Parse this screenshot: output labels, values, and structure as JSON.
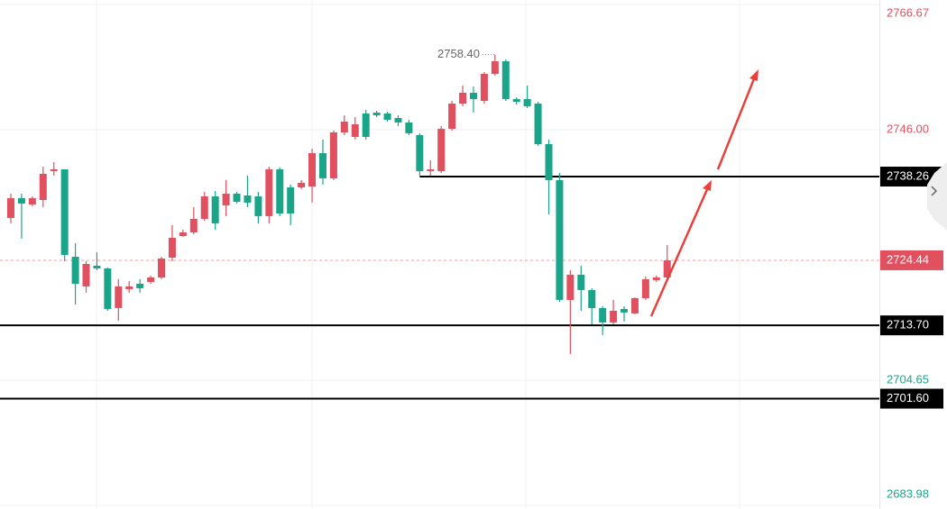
{
  "chart_data": {
    "type": "candlestick",
    "ylim": [
      2683.98,
      2766.67
    ],
    "yticks": [
      2683.98,
      2704.65,
      {
        "value": 2746.0,
        "label": "2746.00"
      },
      2766.67
    ],
    "grid": true,
    "up_color": "#e0505e",
    "down_color": "#1aa58a",
    "level_color": "#000000",
    "candles": {
      "open": [
        2731.43,
        2734.7,
        2733.66,
        2734.4,
        2739.16,
        2739.46,
        2725.03,
        2720.13,
        2723.55,
        2723.1,
        2716.56,
        2719.68,
        2720.57,
        2720.87,
        2721.61,
        2724.88,
        2728.45,
        2729.05,
        2731.28,
        2734.99,
        2733.51,
        2735.44,
        2735.14,
        2734.99,
        2731.73,
        2739.46,
        2736.48,
        2736.48,
        2736.63,
        2742.13,
        2737.97,
        2745.56,
        2744.81,
        2748.68,
        2748.83,
        2748.68,
        2747.93,
        2747.19,
        2745.11,
        2739.16,
        2739.16,
        2746.15,
        2750.31,
        2752.1,
        2750.76,
        2755.22,
        2757.3,
        2751.06,
        2751.06,
        2750.31,
        2743.62,
        2737.67,
        2717.9,
        2722.06,
        2719.53,
        2716.56,
        2714.18,
        2716.41,
        2715.67,
        2718.19,
        2721.17,
        2721.61
      ],
      "high": [
        2735.44,
        2735.44,
        2734.99,
        2739.9,
        2740.65,
        2739.46,
        2727.26,
        2724.29,
        2725.78,
        2723.25,
        2721.32,
        2721.02,
        2721.32,
        2721.91,
        2725.03,
        2730.24,
        2729.49,
        2733.21,
        2735.74,
        2735.89,
        2737.67,
        2735.74,
        2738.42,
        2735.74,
        2739.9,
        2739.76,
        2736.93,
        2737.67,
        2742.88,
        2744.37,
        2745.85,
        2748.38,
        2748.08,
        2749.27,
        2749.12,
        2748.98,
        2748.38,
        2747.64,
        2745.41,
        2740.94,
        2746.6,
        2750.76,
        2753.29,
        2753.14,
        2755.52,
        2758.4,
        2757.6,
        2751.35,
        2753.29,
        2750.61,
        2744.37,
        2738.86,
        2722.8,
        2723.55,
        2719.83,
        2716.86,
        2717.9,
        2716.86,
        2718.34,
        2721.76,
        2721.91,
        2726.97
      ],
      "low": [
        2730.54,
        2728.01,
        2733.36,
        2733.21,
        2738.42,
        2724.29,
        2717.15,
        2719.09,
        2722.8,
        2716.11,
        2714.48,
        2719.09,
        2719.09,
        2720.57,
        2721.32,
        2724.29,
        2728.31,
        2728.75,
        2730.98,
        2729.49,
        2731.73,
        2733.81,
        2733.21,
        2730.54,
        2730.54,
        2731.73,
        2730.24,
        2736.19,
        2733.96,
        2736.93,
        2737.67,
        2745.11,
        2744.37,
        2744.37,
        2748.08,
        2747.34,
        2746.6,
        2745.11,
        2738.42,
        2738.42,
        2738.86,
        2745.85,
        2749.87,
        2748.83,
        2750.31,
        2754.92,
        2750.76,
        2750.16,
        2749.57,
        2743.32,
        2732.02,
        2717.6,
        2708.97,
        2716.11,
        2713.88,
        2712.1,
        2713.88,
        2714.33,
        2715.52,
        2717.9,
        2720.87,
        2721.32
      ],
      "close": [
        2734.7,
        2733.81,
        2734.7,
        2738.71,
        2739.46,
        2725.33,
        2720.57,
        2723.84,
        2723.1,
        2716.41,
        2720.13,
        2720.13,
        2719.83,
        2721.61,
        2724.74,
        2728.16,
        2729.05,
        2731.28,
        2734.99,
        2730.54,
        2735.44,
        2734.1,
        2733.96,
        2731.73,
        2739.46,
        2732.17,
        2732.17,
        2737.23,
        2742.13,
        2737.97,
        2745.56,
        2747.34,
        2746.89,
        2744.81,
        2748.38,
        2747.64,
        2747.19,
        2745.41,
        2739.16,
        2739.46,
        2746.15,
        2750.31,
        2752.1,
        2751.06,
        2755.22,
        2757.3,
        2751.06,
        2750.61,
        2749.87,
        2743.62,
        2737.67,
        2717.9,
        2722.06,
        2719.53,
        2716.56,
        2714.18,
        2716.11,
        2715.82,
        2718.19,
        2721.32,
        2721.61,
        2724.44
      ]
    },
    "high_label": {
      "value": 2758.4,
      "label": "2758.40"
    },
    "last_price": 2724.44,
    "levels": [
      2738.26,
      {
        "value": 2713.7,
        "label": "2713.70"
      },
      {
        "value": 2701.6,
        "label": "2701.60"
      }
    ]
  }
}
